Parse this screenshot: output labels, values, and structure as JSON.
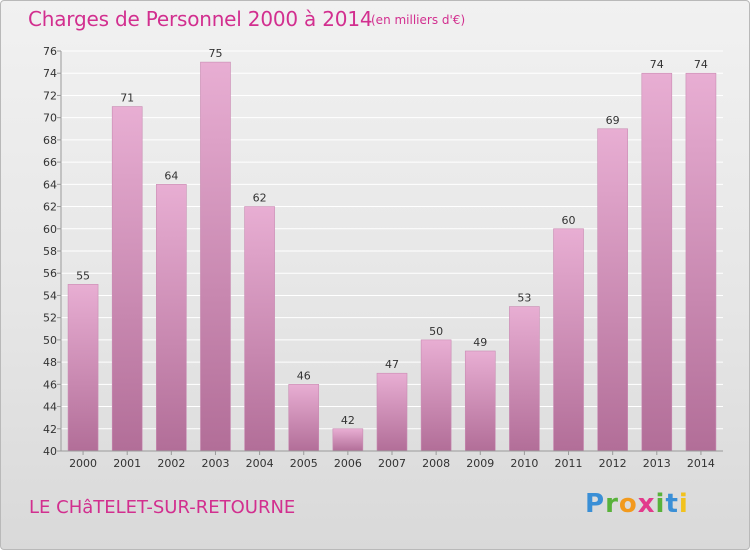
{
  "header": {
    "title": "Charges de Personnel 2000 à 2014",
    "subtitle": "(en milliers d'€)"
  },
  "footer": {
    "commune": "LE CHâTELET-SUR-RETOURNE",
    "logo_letters": [
      "P",
      "r",
      "o",
      "x",
      "i",
      "t",
      "i"
    ]
  },
  "colors": {
    "title": "#d22f8f",
    "bar_light": "#e8aed3",
    "bar_dark": "#b26e98",
    "grid": "#ffffff"
  },
  "chart_data": {
    "type": "bar",
    "categories": [
      "2000",
      "2001",
      "2002",
      "2003",
      "2004",
      "2005",
      "2006",
      "2007",
      "2008",
      "2009",
      "2010",
      "2011",
      "2012",
      "2013",
      "2014"
    ],
    "values": [
      55,
      71,
      64,
      75,
      62,
      46,
      42,
      47,
      50,
      49,
      53,
      60,
      69,
      74,
      74
    ],
    "ylim": [
      40,
      76
    ],
    "yticks": [
      40,
      42,
      44,
      46,
      48,
      50,
      52,
      54,
      56,
      58,
      60,
      62,
      64,
      66,
      68,
      70,
      72,
      74,
      76
    ],
    "grid": true,
    "data_labels": true
  }
}
